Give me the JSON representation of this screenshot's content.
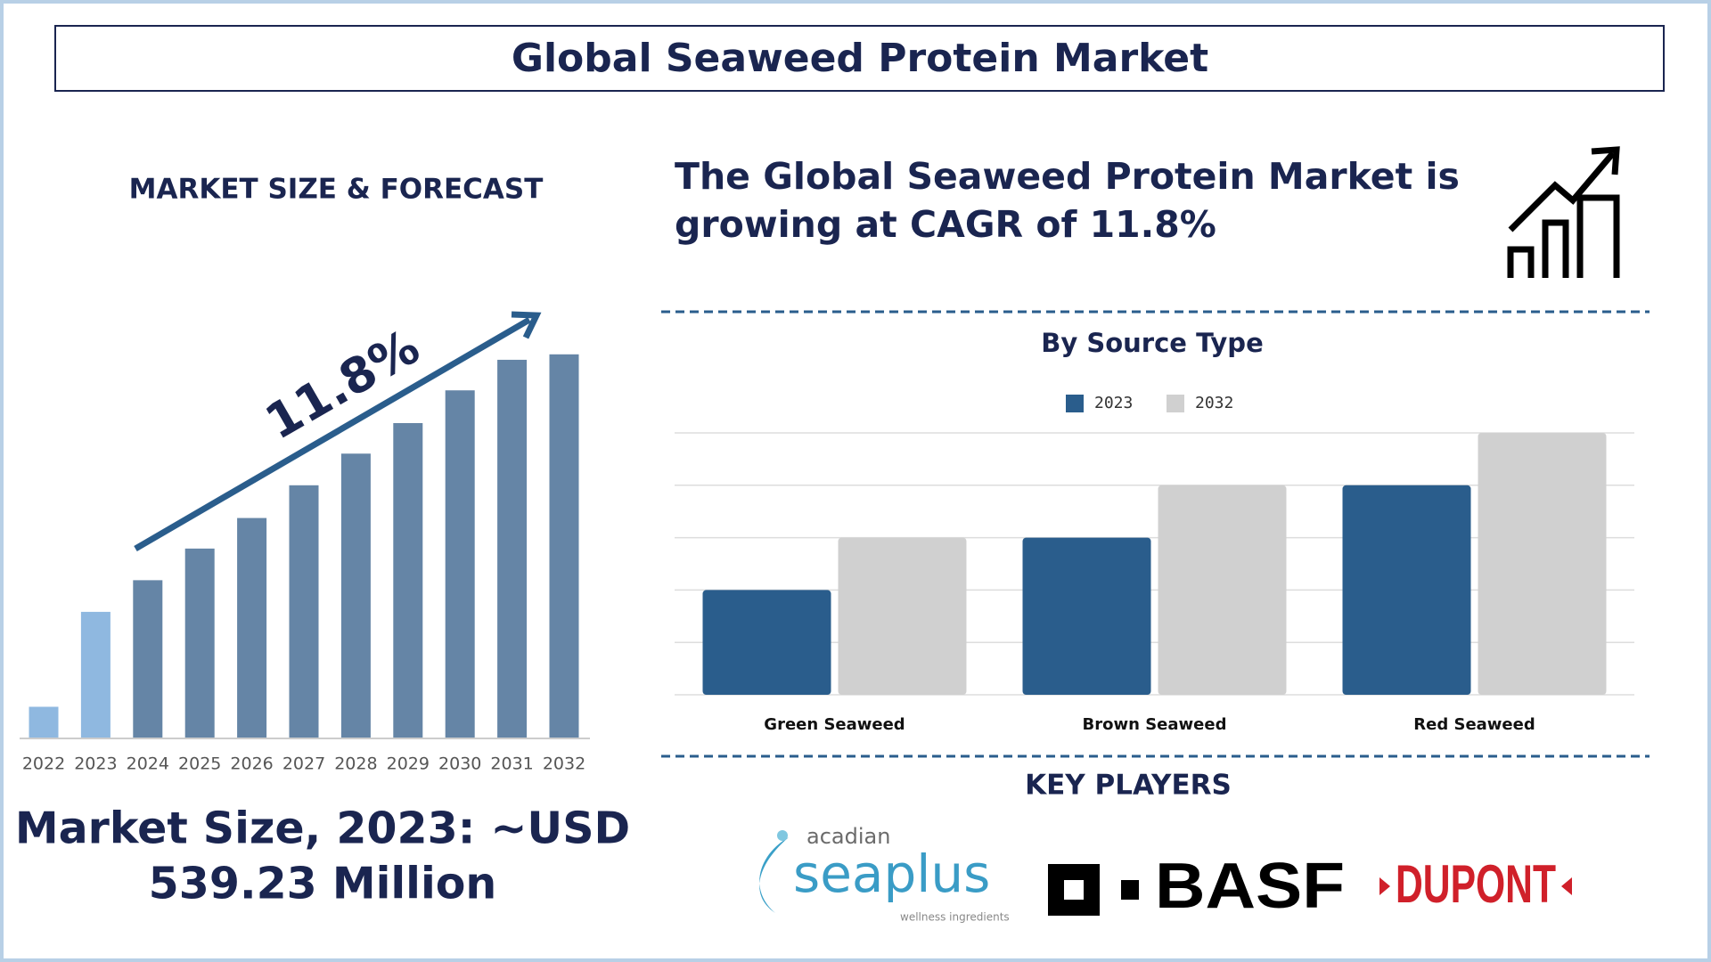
{
  "header": {
    "title": "Global Seaweed Protein Market"
  },
  "chart_data": [
    {
      "type": "bar",
      "title": "MARKET SIZE & FORECAST",
      "categories": [
        "2022",
        "2023",
        "2024",
        "2025",
        "2026",
        "2027",
        "2028",
        "2029",
        "2030",
        "2031",
        "2032"
      ],
      "values": [
        29,
        116,
        145,
        174,
        202,
        232,
        261,
        289,
        319,
        347,
        352
      ],
      "colors": [
        "#8fb8e0",
        "#8fb8e0",
        "#6585a6",
        "#6585a6",
        "#6585a6",
        "#6585a6",
        "#6585a6",
        "#6585a6",
        "#6585a6",
        "#6585a6",
        "#6585a6"
      ],
      "ylim": [
        0,
        360
      ],
      "annotation": "11.8%"
    },
    {
      "type": "grouped_bar",
      "title": "By Source Type",
      "categories": [
        "Green Seaweed",
        "Brown Seaweed",
        "Red Seaweed"
      ],
      "series": [
        {
          "name": "2023",
          "color": "#2a5d8c",
          "values": [
            2,
            3,
            4
          ]
        },
        {
          "name": "2032",
          "color": "#d0d0d0",
          "values": [
            3,
            4,
            5
          ]
        }
      ],
      "ylim": [
        0,
        5
      ],
      "yticks": [
        0,
        1,
        2,
        3,
        4,
        5
      ],
      "grid": true
    }
  ],
  "market_size": {
    "lines": [
      "Market Size, 2023: ~USD",
      "539.23 Million"
    ]
  },
  "cagr_text": {
    "lines": [
      "The Global Seaweed Protein Market is",
      "growing at CAGR of 11.8%"
    ]
  },
  "key_players": {
    "title": "KEY PLAYERS",
    "players": [
      {
        "name": "acadian",
        "brand": "seaplus",
        "tagline": "wellness ingredients"
      },
      {
        "name": "BASF"
      },
      {
        "name": "DUPONT"
      }
    ]
  }
}
